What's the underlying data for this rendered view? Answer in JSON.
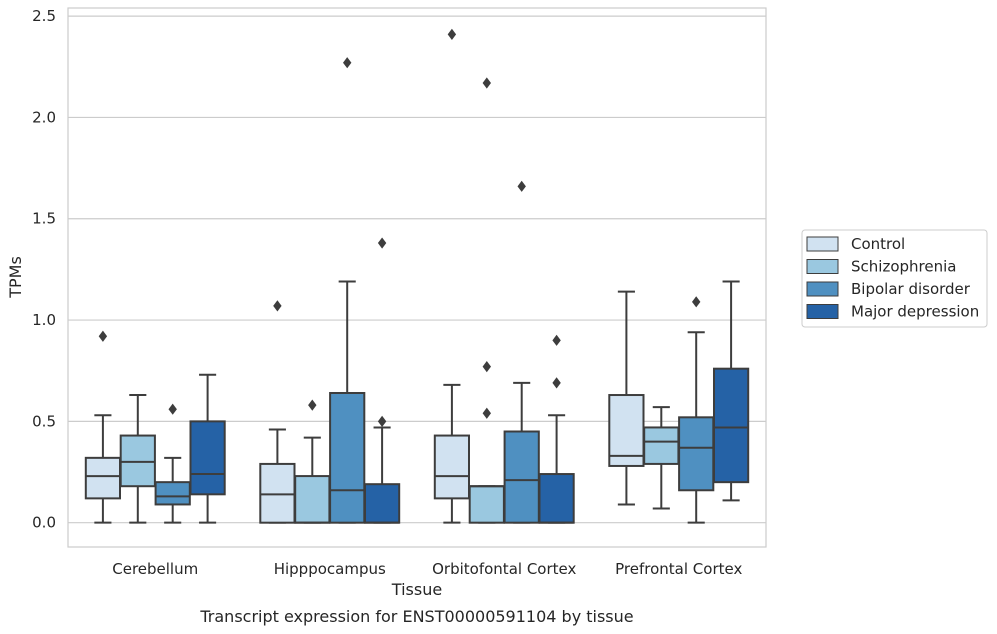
{
  "chart_data": {
    "type": "box",
    "caption": "Transcript expression for ENST00000591104 by tissue",
    "xlabel": "Tissue",
    "ylabel": "TPMs",
    "ylim": [
      -0.12,
      2.54
    ],
    "yticks": [
      0.0,
      0.5,
      1.0,
      1.5,
      2.0,
      2.5
    ],
    "ytick_labels": [
      "0.0",
      "0.5",
      "1.0",
      "1.5",
      "2.0",
      "2.5"
    ],
    "grid": true,
    "legend_position": "right",
    "categories": [
      "Cerebellum",
      "Hipppocampus",
      "Orbitofontal Cortex",
      "Prefrontal Cortex"
    ],
    "series": [
      {
        "name": "Control",
        "color": "#d1e2f1",
        "boxes": [
          {
            "whislo": 0.0,
            "q1": 0.12,
            "med": 0.23,
            "q3": 0.32,
            "whishi": 0.53,
            "fliers": [
              0.92
            ]
          },
          {
            "whislo": 0.0,
            "q1": 0.0,
            "med": 0.14,
            "q3": 0.29,
            "whishi": 0.46,
            "fliers": [
              1.07
            ]
          },
          {
            "whislo": 0.0,
            "q1": 0.12,
            "med": 0.23,
            "q3": 0.43,
            "whishi": 0.68,
            "fliers": [
              2.41
            ]
          },
          {
            "whislo": 0.09,
            "q1": 0.28,
            "med": 0.33,
            "q3": 0.63,
            "whishi": 1.14,
            "fliers": []
          }
        ]
      },
      {
        "name": "Schizophrenia",
        "color": "#9ac8e0",
        "boxes": [
          {
            "whislo": 0.0,
            "q1": 0.18,
            "med": 0.3,
            "q3": 0.43,
            "whishi": 0.63,
            "fliers": []
          },
          {
            "whislo": 0.0,
            "q1": 0.0,
            "med": 0.0,
            "q3": 0.23,
            "whishi": 0.42,
            "fliers": [
              0.58
            ]
          },
          {
            "whislo": 0.0,
            "q1": 0.0,
            "med": 0.18,
            "q3": 0.18,
            "whishi": 0.18,
            "fliers": [
              2.17,
              0.77,
              0.54
            ]
          },
          {
            "whislo": 0.07,
            "q1": 0.29,
            "med": 0.4,
            "q3": 0.47,
            "whishi": 0.57,
            "fliers": []
          }
        ]
      },
      {
        "name": "Bipolar disorder",
        "color": "#4f90c1",
        "boxes": [
          {
            "whislo": 0.0,
            "q1": 0.09,
            "med": 0.13,
            "q3": 0.2,
            "whishi": 0.32,
            "fliers": [
              0.56
            ]
          },
          {
            "whislo": 0.0,
            "q1": 0.0,
            "med": 0.16,
            "q3": 0.64,
            "whishi": 1.19,
            "fliers": [
              2.27
            ]
          },
          {
            "whislo": 0.0,
            "q1": 0.0,
            "med": 0.21,
            "q3": 0.45,
            "whishi": 0.69,
            "fliers": [
              1.66
            ]
          },
          {
            "whislo": 0.0,
            "q1": 0.16,
            "med": 0.37,
            "q3": 0.52,
            "whishi": 0.94,
            "fliers": [
              1.09
            ]
          }
        ]
      },
      {
        "name": "Major depression",
        "color": "#2562a6",
        "boxes": [
          {
            "whislo": 0.0,
            "q1": 0.14,
            "med": 0.24,
            "q3": 0.5,
            "whishi": 0.73,
            "fliers": []
          },
          {
            "whislo": 0.0,
            "q1": 0.0,
            "med": 0.0,
            "q3": 0.19,
            "whishi": 0.47,
            "fliers": [
              1.38,
              0.5
            ]
          },
          {
            "whislo": 0.0,
            "q1": 0.0,
            "med": 0.0,
            "q3": 0.24,
            "whishi": 0.53,
            "fliers": [
              0.9,
              0.69
            ]
          },
          {
            "whislo": 0.11,
            "q1": 0.2,
            "med": 0.47,
            "q3": 0.76,
            "whishi": 1.19,
            "fliers": []
          }
        ]
      }
    ]
  }
}
